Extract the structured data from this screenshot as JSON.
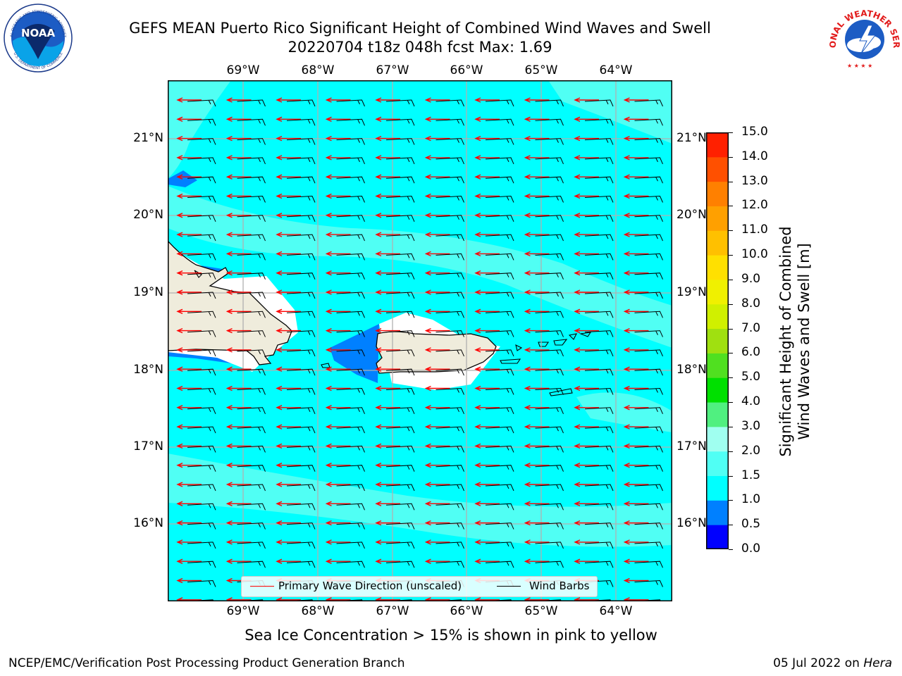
{
  "title_line1": "GEFS MEAN Puerto Rico Significant Height of Combined Wind Waves and Swell",
  "title_line2": "20220704 t18z 048h fcst   Max: 1.69",
  "noaa_logo_text": {
    "center": "NOAA",
    "ring_top": "NATIONAL OCEANIC AND ATMOSPHERIC ADMINISTRATION",
    "ring_bottom": "U.S. DEPARTMENT OF COMMERCE"
  },
  "nws_logo_text": "NATIONAL WEATHER SERVICE",
  "longitude_labels": [
    "69°W",
    "68°W",
    "67°W",
    "66°W",
    "65°W",
    "64°W"
  ],
  "latitude_labels": [
    "21°N",
    "20°N",
    "19°N",
    "18°N",
    "17°N",
    "16°N"
  ],
  "colorbar": {
    "label_line1": "Significant Height of Combined",
    "label_line2": "Wind Waves and Swell [m]",
    "tick_labels": [
      "0.0",
      "0.5",
      "1.0",
      "1.5",
      "2.0",
      "3.0",
      "4.0",
      "5.0",
      "6.0",
      "7.0",
      "8.0",
      "9.0",
      "10.0",
      "11.0",
      "12.0",
      "13.0",
      "14.0",
      "15.0"
    ],
    "colors": [
      "#0000ff",
      "#0080ff",
      "#00ffff",
      "#50fff4",
      "#a0fff0",
      "#50f080",
      "#00e000",
      "#50e020",
      "#a0e010",
      "#d0f000",
      "#f0f000",
      "#ffe000",
      "#ffc000",
      "#ffa000",
      "#ff8000",
      "#ff5000",
      "#ff2000"
    ]
  },
  "legend": {
    "wave_direction": "Primary Wave Direction (unscaled)",
    "wind_barbs": "Wind Barbs",
    "wave_color": "#ff0000",
    "barb_color": "#000000"
  },
  "map_data": {
    "lon_range": [
      -70.0,
      -63.25
    ],
    "lat_range": [
      15.0,
      21.75
    ],
    "max_value_m": 1.69,
    "ocean_color": "#00ffff",
    "swell_band_color": "#50fff4",
    "low_wave_color": "#0080ff",
    "land_color": "#efecdc",
    "prevailing_wind": "east"
  },
  "sea_ice_note": "Sea Ice Concentration > 15% is shown in pink to yellow",
  "footer": {
    "left": "NCEP/EMC/Verification Post Processing Product Generation Branch",
    "date": "05 Jul 2022 on ",
    "host": "Hera"
  }
}
